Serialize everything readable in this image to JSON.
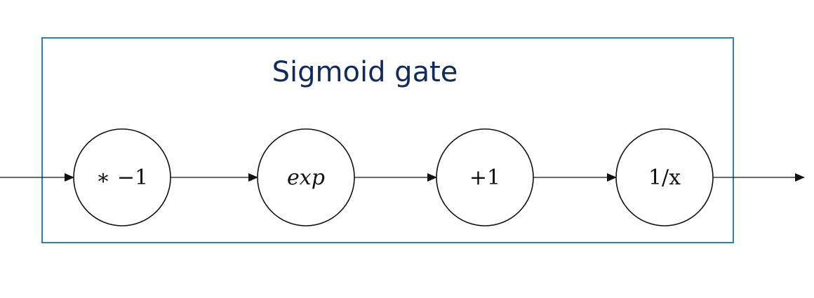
{
  "gate": {
    "title": "Sigmoid gate",
    "border_color": "#2f7fb0",
    "title_color": "#0f2a5c"
  },
  "nodes": [
    {
      "id": "mult-neg1",
      "label": "∗ −1",
      "italic": false
    },
    {
      "id": "exp",
      "label": "exp",
      "italic": true
    },
    {
      "id": "plus1",
      "label": "+1",
      "italic": false
    },
    {
      "id": "reciprocal",
      "label": "1/x",
      "italic": false
    }
  ],
  "edges": [
    {
      "from": "input",
      "to": "mult-neg1"
    },
    {
      "from": "mult-neg1",
      "to": "exp"
    },
    {
      "from": "exp",
      "to": "plus1"
    },
    {
      "from": "plus1",
      "to": "reciprocal"
    },
    {
      "from": "reciprocal",
      "to": "output"
    }
  ]
}
